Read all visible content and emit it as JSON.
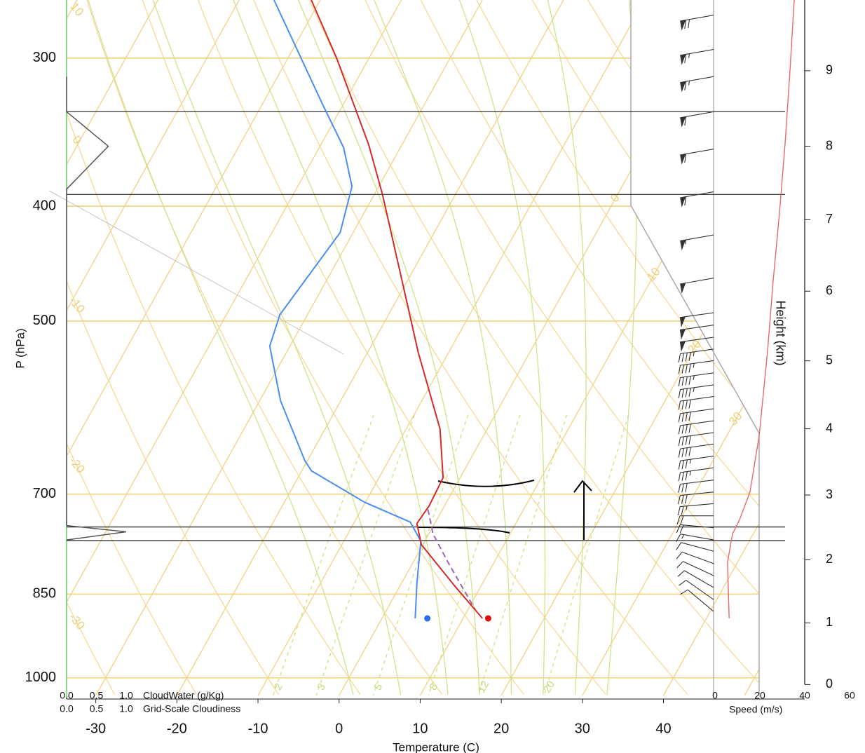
{
  "chart_data": {
    "type": "skewt",
    "ylabel": "P (hPa)",
    "xlabel": "Temperature (C)",
    "ylim": [
      1035,
      268
    ],
    "yticks": [
      300,
      400,
      500,
      700,
      850,
      1000
    ],
    "xlim": [
      -33.6,
      51.8
    ],
    "xticks": [
      -30,
      -20,
      -10,
      0,
      10,
      20,
      30,
      40
    ],
    "isotherms": [
      -120,
      -110,
      -100,
      -90,
      -80,
      -70,
      -60,
      -50,
      -40,
      -30,
      -20,
      -10,
      0,
      10,
      20,
      30,
      40,
      50
    ],
    "isotherm_labels": [
      0,
      10,
      20,
      30
    ],
    "dry_adiabats": [
      -50,
      -40,
      -30,
      -20,
      -10,
      0,
      10,
      20,
      30,
      40,
      50,
      60,
      70,
      80,
      90,
      100,
      110,
      120,
      130,
      140,
      150,
      160,
      170
    ],
    "dry_adiabat_labels": [
      10,
      0,
      -10,
      -20,
      -30
    ],
    "moist_adiabats": [
      0,
      6,
      12,
      16,
      20,
      24,
      28,
      32
    ],
    "mixing_ratios": [
      2,
      3,
      5,
      8,
      12,
      20
    ],
    "temperature": {
      "color": "#d42a2a",
      "pressure": [
        268,
        300,
        355,
        391,
        451,
        531,
        617,
        678,
        716,
        741,
        772,
        838,
        891
      ],
      "values": [
        -51.1,
        -44.0,
        -34.1,
        -29.0,
        -21.9,
        -13.8,
        -5.8,
        -2.1,
        -1.9,
        -2.2,
        -0.2,
        6.9,
        12.4
      ]
    },
    "dewpoint": {
      "color": "#4a8ef0",
      "pressure": [
        268,
        329,
        357,
        385,
        421,
        494,
        525,
        584,
        656,
        669,
        711,
        739,
        767,
        832,
        891
      ],
      "values": [
        -55.7,
        -42.4,
        -37.0,
        -33.3,
        -31.6,
        -33.4,
        -32.5,
        -27.4,
        -20.3,
        -18.8,
        -10.1,
        -3.1,
        -0.5,
        1.9,
        4.1
      ]
    },
    "parcel": {
      "color": "#a064b4",
      "pressure": [
        721,
        756,
        799,
        876
      ],
      "values": [
        -1.8,
        0.5,
        4.3,
        10.9
      ]
    },
    "surface_temperature": {
      "color": "#e01010",
      "pressure": 891,
      "value": 13.1
    },
    "surface_dewpoint": {
      "color": "#2a6ef0",
      "pressure": 891,
      "value": 5.6
    },
    "height": {
      "label": "Height (km)",
      "ticks": [
        0,
        1,
        2,
        3,
        4,
        5,
        6,
        7,
        8,
        9
      ]
    },
    "speed": {
      "label": "Speed (m/s)",
      "color": "#e86a6a",
      "xlim": [
        0,
        60
      ],
      "xticks": [
        0,
        20,
        40,
        60
      ],
      "pressure": [
        268,
        308,
        353,
        404,
        463,
        531,
        625,
        697,
        736,
        756,
        799,
        891
      ],
      "values": [
        35.3,
        33.4,
        31.3,
        28.8,
        25.9,
        23.4,
        19.7,
        15.6,
        10.9,
        7.8,
        5.6,
        6.3
      ]
    },
    "wind": {
      "pressure": [
        276,
        295,
        311,
        333,
        358,
        389,
        423,
        460,
        492,
        504,
        516,
        528,
        540,
        553,
        566,
        579,
        593,
        607,
        621,
        635,
        650,
        665,
        681,
        697,
        713,
        730,
        747,
        765,
        782,
        801,
        820,
        839,
        859,
        879
      ],
      "speed": [
        35,
        34,
        33,
        32,
        31,
        30,
        28,
        27,
        26,
        25,
        25,
        24,
        24,
        23,
        23,
        22,
        22,
        21,
        20,
        20,
        19,
        18,
        17,
        16,
        14,
        12,
        10,
        8,
        7,
        6,
        6,
        6,
        6,
        6
      ],
      "direction": [
        260,
        260,
        260,
        260,
        260,
        260,
        260,
        260,
        262,
        262,
        262,
        262,
        262,
        262,
        262,
        262,
        262,
        262,
        262,
        262,
        262,
        262,
        263,
        264,
        265,
        270,
        275,
        280,
        285,
        290,
        295,
        300,
        305,
        310
      ]
    },
    "cloud_water": {
      "label": "CloudWater (g/Kg)",
      "color": "#44c444",
      "xlim": [
        0,
        1
      ],
      "xticks": [
        {
          "value": 0,
          "label": "0.0"
        },
        0.5,
        {
          "value": 1,
          "label": "1.0"
        }
      ]
    },
    "cloudiness": {
      "label": "Grid-Scale Cloudiness",
      "color": "#555555",
      "xlim": [
        0,
        1
      ],
      "xticks": [
        {
          "value": 0,
          "label": "0.0"
        },
        0.5,
        {
          "value": 1,
          "label": "1.0"
        }
      ],
      "pressure": [
        311,
        333,
        356,
        387,
        744,
        753,
        765
      ],
      "values": [
        0,
        0,
        0.7,
        0,
        0,
        1,
        0
      ]
    },
    "cloud_layers": [
      333,
      391,
      746,
      766
    ]
  }
}
